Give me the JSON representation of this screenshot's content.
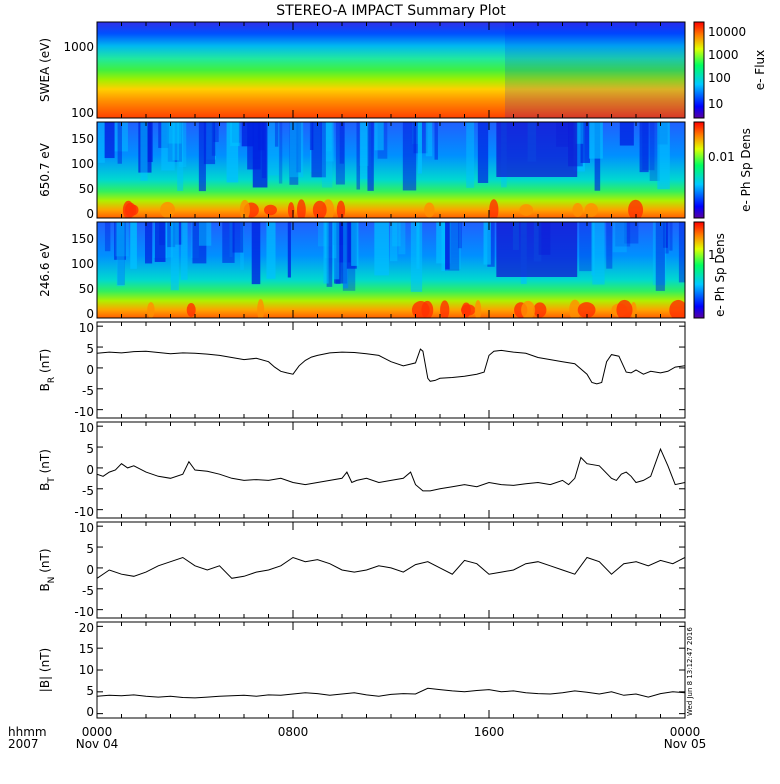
{
  "title": "STEREO-A IMPACT Summary Plot",
  "timestamp_label": "Wed Jun 8 13:12:47 2016",
  "x_axis": {
    "corner_top": "hhmm",
    "corner_bottom": "2007",
    "range_hours": [
      0,
      24
    ],
    "ticks": [
      {
        "hour": 0,
        "top": "0000",
        "bottom": "Nov 04"
      },
      {
        "hour": 8,
        "top": "0800",
        "bottom": ""
      },
      {
        "hour": 16,
        "top": "1600",
        "bottom": ""
      },
      {
        "hour": 24,
        "top": "0000",
        "bottom": "Nov 05"
      }
    ]
  },
  "chart_data": [
    {
      "id": "swea",
      "type": "heatmap",
      "ylabel": "SWEA (eV)",
      "yscale": "log",
      "ylim": [
        90,
        2000
      ],
      "yticks": [
        "1000",
        "100"
      ],
      "colorbar": {
        "label": "e- Flux",
        "scale": "log",
        "range": [
          3,
          20000
        ],
        "ticks": [
          "10000",
          "1000",
          "100",
          "10"
        ]
      },
      "description_values": {
        "flux_at_100eV": 8000,
        "flux_at_1000eV": 10
      },
      "feature": {
        "shift_hour": 16.3
      }
    },
    {
      "id": "pad650",
      "type": "heatmap",
      "ylabel": "650.7 eV",
      "ylim": [
        -10,
        180
      ],
      "yticks": [
        "150",
        "100",
        "50",
        "0"
      ],
      "colorbar": {
        "label": "e- Ph Sp Dens",
        "scale": "log",
        "ticks": [
          "0.01"
        ]
      }
    },
    {
      "id": "pad246",
      "type": "heatmap",
      "ylabel": "246.6 eV",
      "ylim": [
        -10,
        180
      ],
      "yticks": [
        "150",
        "100",
        "50",
        "0"
      ],
      "colorbar": {
        "label": "e- Ph Sp Dens",
        "scale": "log",
        "ticks": [
          "1"
        ]
      }
    },
    {
      "id": "br",
      "type": "line",
      "ylabel": "B",
      "ylabel_sub": "R",
      "ylabel_unit": " (nT)",
      "ylim": [
        -12,
        11
      ],
      "yticks": [
        "10",
        "5",
        "0",
        "-5",
        "-10"
      ],
      "x": [
        0,
        0.5,
        1,
        1.5,
        2,
        2.5,
        3,
        3.5,
        4,
        4.5,
        5,
        5.5,
        6,
        6.5,
        7,
        7.25,
        7.5,
        7.75,
        8,
        8.25,
        8.5,
        8.75,
        9,
        9.5,
        10,
        10.5,
        11,
        11.5,
        12,
        12.5,
        13,
        13.2,
        13.3,
        13.5,
        13.6,
        13.8,
        14,
        14.5,
        15,
        15.5,
        15.8,
        16,
        16.2,
        16.5,
        17,
        17.5,
        18,
        18.5,
        19,
        19.5,
        20,
        20.2,
        20.4,
        20.6,
        20.8,
        21,
        21.3,
        21.6,
        21.8,
        22,
        22.3,
        22.6,
        23,
        23.3,
        23.6,
        24
      ],
      "y": [
        3.5,
        3.8,
        3.6,
        3.9,
        4.0,
        3.7,
        3.4,
        3.6,
        3.5,
        3.3,
        3.0,
        2.5,
        2.0,
        2.3,
        1.5,
        0.2,
        -0.8,
        -1.2,
        -1.5,
        0.5,
        1.8,
        2.6,
        3.0,
        3.6,
        3.8,
        3.7,
        3.4,
        3.0,
        1.5,
        0.5,
        1.2,
        4.5,
        4.0,
        -2.5,
        -3.2,
        -3.0,
        -2.5,
        -2.3,
        -2.0,
        -1.5,
        -1.0,
        3.0,
        4.0,
        4.2,
        3.8,
        3.5,
        2.5,
        2.0,
        1.5,
        1.0,
        -1.5,
        -3.5,
        -3.8,
        -3.5,
        1.5,
        3.2,
        2.8,
        -1.0,
        -1.2,
        -0.5,
        -1.5,
        -0.8,
        -1.2,
        -0.8,
        0.2,
        0.5
      ]
    },
    {
      "id": "bt",
      "type": "line",
      "ylabel": "B",
      "ylabel_sub": "T",
      "ylabel_unit": " (nT)",
      "ylim": [
        -12,
        11
      ],
      "yticks": [
        "10",
        "5",
        "0",
        "-5",
        "-10"
      ],
      "x": [
        0,
        0.25,
        0.5,
        0.75,
        1,
        1.25,
        1.5,
        2,
        2.5,
        3,
        3.5,
        3.75,
        4,
        4.5,
        5,
        5.5,
        6,
        6.5,
        7,
        7.5,
        8,
        8.5,
        9,
        9.5,
        10,
        10.2,
        10.4,
        10.6,
        11,
        11.5,
        12,
        12.5,
        12.8,
        13,
        13.3,
        13.6,
        14,
        14.5,
        15,
        15.5,
        16,
        16.5,
        17,
        17.5,
        18,
        18.5,
        19,
        19.25,
        19.5,
        19.75,
        20,
        20.5,
        21,
        21.2,
        21.4,
        21.6,
        21.8,
        22,
        22.3,
        22.6,
        23,
        23.3,
        23.6,
        24
      ],
      "y": [
        -1.5,
        -2.0,
        -1.0,
        -0.5,
        1.0,
        0.0,
        0.5,
        -1.0,
        -2.0,
        -2.5,
        -1.5,
        1.5,
        -0.5,
        -0.8,
        -1.5,
        -2.5,
        -3.0,
        -2.8,
        -3.0,
        -2.5,
        -3.5,
        -4.0,
        -3.5,
        -3.0,
        -2.5,
        -1.0,
        -3.5,
        -3.0,
        -2.5,
        -3.5,
        -3.0,
        -2.5,
        -1.0,
        -4.0,
        -5.5,
        -5.5,
        -5.0,
        -4.5,
        -4.0,
        -4.5,
        -3.5,
        -4.0,
        -4.2,
        -3.8,
        -3.5,
        -4.0,
        -3.0,
        -4.0,
        -2.5,
        2.5,
        1.0,
        0.5,
        -2.5,
        -3.0,
        -1.5,
        -1.0,
        -2.0,
        -3.5,
        -3.0,
        -2.0,
        4.5,
        0.5,
        -4.0,
        -3.5
      ]
    },
    {
      "id": "bn",
      "type": "line",
      "ylabel": "B",
      "ylabel_sub": "N",
      "ylabel_unit": " (nT)",
      "ylim": [
        -12,
        11
      ],
      "yticks": [
        "10",
        "5",
        "0",
        "-5",
        "-10"
      ],
      "x": [
        0,
        0.5,
        1,
        1.5,
        2,
        2.5,
        3,
        3.5,
        4,
        4.5,
        5,
        5.5,
        6,
        6.5,
        7,
        7.5,
        8,
        8.5,
        9,
        9.5,
        10,
        10.5,
        11,
        11.5,
        12,
        12.5,
        13,
        13.5,
        14,
        14.5,
        15,
        15.5,
        16,
        16.5,
        17,
        17.5,
        18,
        18.5,
        19,
        19.5,
        20,
        20.5,
        21,
        21.5,
        22,
        22.5,
        23,
        23.5,
        24
      ],
      "y": [
        -2.5,
        -0.5,
        -1.5,
        -2.0,
        -1.0,
        0.5,
        1.5,
        2.5,
        0.5,
        -0.5,
        0.5,
        -2.5,
        -2.0,
        -1.0,
        -0.5,
        0.5,
        2.5,
        1.5,
        2.0,
        1.0,
        -0.5,
        -1.0,
        -0.5,
        0.5,
        0.0,
        -1.0,
        0.8,
        1.5,
        0.0,
        -1.5,
        1.8,
        1.0,
        -1.5,
        -1.0,
        -0.5,
        1.0,
        1.5,
        0.5,
        -0.5,
        -1.5,
        2.5,
        1.5,
        -1.5,
        1.0,
        1.5,
        0.5,
        1.8,
        1.0,
        2.5
      ]
    },
    {
      "id": "bmag",
      "type": "line",
      "ylabel": "|B| (nT)",
      "ylim": [
        -1,
        21
      ],
      "yticks": [
        "20",
        "15",
        "10",
        "5",
        "0"
      ],
      "x": [
        0,
        0.5,
        1,
        1.5,
        2,
        2.5,
        3,
        3.5,
        4,
        4.5,
        5,
        5.5,
        6,
        6.5,
        7,
        7.5,
        8,
        8.5,
        9,
        9.5,
        10,
        10.5,
        11,
        11.5,
        12,
        12.5,
        13,
        13.5,
        14,
        14.5,
        15,
        15.5,
        16,
        16.5,
        17,
        17.5,
        18,
        18.5,
        19,
        19.5,
        20,
        20.5,
        21,
        21.5,
        22,
        22.5,
        23,
        23.5,
        24
      ],
      "y": [
        4.0,
        4.2,
        4.1,
        4.3,
        4.0,
        3.8,
        4.0,
        3.7,
        3.6,
        3.8,
        4.0,
        4.1,
        4.2,
        4.0,
        4.3,
        4.2,
        4.5,
        4.8,
        4.6,
        4.2,
        4.5,
        4.8,
        4.3,
        4.0,
        4.4,
        4.6,
        4.5,
        5.8,
        5.5,
        5.2,
        5.0,
        5.3,
        5.5,
        5.0,
        5.2,
        4.8,
        4.6,
        4.5,
        4.8,
        5.2,
        4.9,
        4.5,
        5.0,
        4.2,
        4.5,
        3.8,
        4.6,
        5.0,
        4.8
      ]
    }
  ]
}
